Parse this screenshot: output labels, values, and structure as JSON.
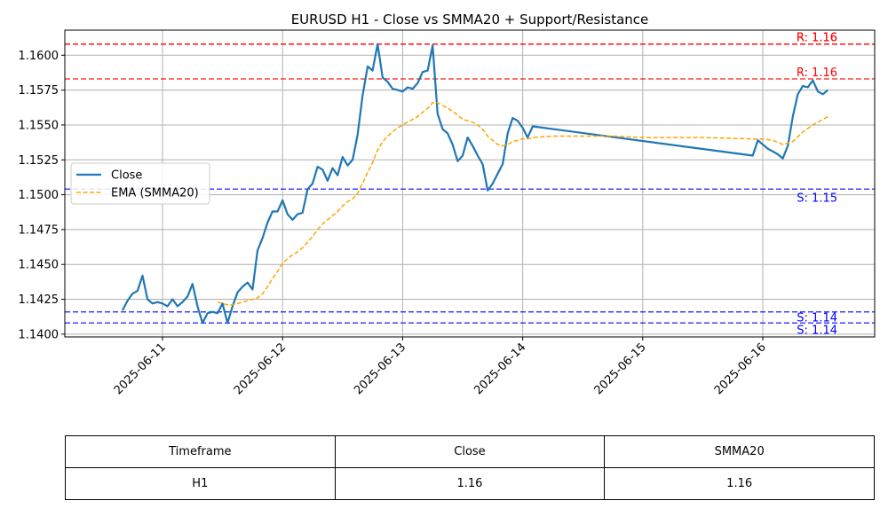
{
  "chart_data": {
    "type": "line",
    "title": "EURUSD H1 - Close vs SMMA20 + Support/Resistance",
    "xlabel": "",
    "ylabel": "",
    "x_ticks": [
      "2025-06-11",
      "2025-06-12",
      "2025-06-13",
      "2025-06-14",
      "2025-06-15",
      "2025-06-16"
    ],
    "y_ticks": [
      "1.1400",
      "1.1425",
      "1.1450",
      "1.1475",
      "1.1500",
      "1.1525",
      "1.1550",
      "1.1575",
      "1.1600"
    ],
    "ylim": [
      1.1398,
      1.1618
    ],
    "grid": true,
    "legend_position": "center-left",
    "series": [
      {
        "name": "Close",
        "color": "#1f77b4",
        "style": "solid",
        "points": [
          [
            "2025-06-10 16:00",
            1.1417
          ],
          [
            "2025-06-10 17:00",
            1.1424
          ],
          [
            "2025-06-10 18:00",
            1.1429
          ],
          [
            "2025-06-10 19:00",
            1.1431
          ],
          [
            "2025-06-10 20:00",
            1.1442
          ],
          [
            "2025-06-10 21:00",
            1.1425
          ],
          [
            "2025-06-10 22:00",
            1.1422
          ],
          [
            "2025-06-10 23:00",
            1.1423
          ],
          [
            "2025-06-11 00:00",
            1.1422
          ],
          [
            "2025-06-11 01:00",
            1.142
          ],
          [
            "2025-06-11 02:00",
            1.1425
          ],
          [
            "2025-06-11 03:00",
            1.142
          ],
          [
            "2025-06-11 04:00",
            1.1423
          ],
          [
            "2025-06-11 05:00",
            1.1427
          ],
          [
            "2025-06-11 06:00",
            1.1436
          ],
          [
            "2025-06-11 07:00",
            1.142
          ],
          [
            "2025-06-11 08:00",
            1.1408
          ],
          [
            "2025-06-11 09:00",
            1.1415
          ],
          [
            "2025-06-11 10:00",
            1.1416
          ],
          [
            "2025-06-11 11:00",
            1.1415
          ],
          [
            "2025-06-11 12:00",
            1.1422
          ],
          [
            "2025-06-11 13:00",
            1.1408
          ],
          [
            "2025-06-11 14:00",
            1.142
          ],
          [
            "2025-06-11 15:00",
            1.143
          ],
          [
            "2025-06-11 16:00",
            1.1434
          ],
          [
            "2025-06-11 17:00",
            1.1437
          ],
          [
            "2025-06-11 18:00",
            1.1432
          ],
          [
            "2025-06-11 19:00",
            1.146
          ],
          [
            "2025-06-11 20:00",
            1.1469
          ],
          [
            "2025-06-11 21:00",
            1.148
          ],
          [
            "2025-06-11 22:00",
            1.1488
          ],
          [
            "2025-06-11 23:00",
            1.1488
          ],
          [
            "2025-06-12 00:00",
            1.1496
          ],
          [
            "2025-06-12 01:00",
            1.1486
          ],
          [
            "2025-06-12 02:00",
            1.1482
          ],
          [
            "2025-06-12 03:00",
            1.1486
          ],
          [
            "2025-06-12 04:00",
            1.1487
          ],
          [
            "2025-06-12 05:00",
            1.1504
          ],
          [
            "2025-06-12 06:00",
            1.1508
          ],
          [
            "2025-06-12 07:00",
            1.152
          ],
          [
            "2025-06-12 08:00",
            1.1518
          ],
          [
            "2025-06-12 09:00",
            1.151
          ],
          [
            "2025-06-12 10:00",
            1.1519
          ],
          [
            "2025-06-12 11:00",
            1.1514
          ],
          [
            "2025-06-12 12:00",
            1.1527
          ],
          [
            "2025-06-12 13:00",
            1.1521
          ],
          [
            "2025-06-12 14:00",
            1.1525
          ],
          [
            "2025-06-12 15:00",
            1.1543
          ],
          [
            "2025-06-12 16:00",
            1.1571
          ],
          [
            "2025-06-12 17:00",
            1.1592
          ],
          [
            "2025-06-12 18:00",
            1.1589
          ],
          [
            "2025-06-12 19:00",
            1.1608
          ],
          [
            "2025-06-12 20:00",
            1.1584
          ],
          [
            "2025-06-12 21:00",
            1.1581
          ],
          [
            "2025-06-12 22:00",
            1.1576
          ],
          [
            "2025-06-12 23:00",
            1.1575
          ],
          [
            "2025-06-13 00:00",
            1.1574
          ],
          [
            "2025-06-13 01:00",
            1.1577
          ],
          [
            "2025-06-13 02:00",
            1.1576
          ],
          [
            "2025-06-13 03:00",
            1.158
          ],
          [
            "2025-06-13 04:00",
            1.1588
          ],
          [
            "2025-06-13 05:00",
            1.1589
          ],
          [
            "2025-06-13 06:00",
            1.1607
          ],
          [
            "2025-06-13 07:00",
            1.1558
          ],
          [
            "2025-06-13 08:00",
            1.1547
          ],
          [
            "2025-06-13 09:00",
            1.1544
          ],
          [
            "2025-06-13 10:00",
            1.1536
          ],
          [
            "2025-06-13 11:00",
            1.1524
          ],
          [
            "2025-06-13 12:00",
            1.1528
          ],
          [
            "2025-06-13 13:00",
            1.1541
          ],
          [
            "2025-06-13 14:00",
            1.1535
          ],
          [
            "2025-06-13 15:00",
            1.1528
          ],
          [
            "2025-06-13 16:00",
            1.1522
          ],
          [
            "2025-06-13 17:00",
            1.1503
          ],
          [
            "2025-06-13 18:00",
            1.1508
          ],
          [
            "2025-06-13 19:00",
            1.1515
          ],
          [
            "2025-06-13 20:00",
            1.1522
          ],
          [
            "2025-06-13 21:00",
            1.1544
          ],
          [
            "2025-06-13 22:00",
            1.1555
          ],
          [
            "2025-06-13 23:00",
            1.1553
          ],
          [
            "2025-06-14 00:00",
            1.1548
          ],
          [
            "2025-06-14 01:00",
            1.1541
          ],
          [
            "2025-06-14 02:00",
            1.1549
          ],
          [
            "2025-06-15 22:00",
            1.1528
          ],
          [
            "2025-06-15 23:00",
            1.1539
          ],
          [
            "2025-06-16 00:00",
            1.1536
          ],
          [
            "2025-06-16 01:00",
            1.1533
          ],
          [
            "2025-06-16 02:00",
            1.1531
          ],
          [
            "2025-06-16 03:00",
            1.1529
          ],
          [
            "2025-06-16 04:00",
            1.1526
          ],
          [
            "2025-06-16 05:00",
            1.1535
          ],
          [
            "2025-06-16 06:00",
            1.1556
          ],
          [
            "2025-06-16 07:00",
            1.1572
          ],
          [
            "2025-06-16 08:00",
            1.1578
          ],
          [
            "2025-06-16 09:00",
            1.1577
          ],
          [
            "2025-06-16 10:00",
            1.1582
          ],
          [
            "2025-06-16 11:00",
            1.1574
          ],
          [
            "2025-06-16 12:00",
            1.1572
          ],
          [
            "2025-06-16 13:00",
            1.1575
          ]
        ]
      },
      {
        "name": "EMA (SMMA20)",
        "color": "#ffa500",
        "style": "dashed",
        "points": [
          [
            "2025-06-11 11:00",
            1.1423
          ],
          [
            "2025-06-11 12:00",
            1.1422
          ],
          [
            "2025-06-11 13:00",
            1.1421
          ],
          [
            "2025-06-11 14:00",
            1.1421
          ],
          [
            "2025-06-11 15:00",
            1.1422
          ],
          [
            "2025-06-11 16:00",
            1.1423
          ],
          [
            "2025-06-11 17:00",
            1.1424
          ],
          [
            "2025-06-11 18:00",
            1.1425
          ],
          [
            "2025-06-11 19:00",
            1.1426
          ],
          [
            "2025-06-11 20:00",
            1.1429
          ],
          [
            "2025-06-11 21:00",
            1.1434
          ],
          [
            "2025-06-11 22:00",
            1.144
          ],
          [
            "2025-06-11 23:00",
            1.1445
          ],
          [
            "2025-06-12 00:00",
            1.1451
          ],
          [
            "2025-06-12 01:00",
            1.1454
          ],
          [
            "2025-06-12 02:00",
            1.1457
          ],
          [
            "2025-06-12 03:00",
            1.1459
          ],
          [
            "2025-06-12 04:00",
            1.1462
          ],
          [
            "2025-06-12 05:00",
            1.1466
          ],
          [
            "2025-06-12 06:00",
            1.147
          ],
          [
            "2025-06-12 07:00",
            1.1475
          ],
          [
            "2025-06-12 08:00",
            1.1479
          ],
          [
            "2025-06-12 09:00",
            1.1482
          ],
          [
            "2025-06-12 10:00",
            1.1485
          ],
          [
            "2025-06-12 11:00",
            1.1488
          ],
          [
            "2025-06-12 12:00",
            1.1492
          ],
          [
            "2025-06-12 13:00",
            1.1495
          ],
          [
            "2025-06-12 14:00",
            1.1497
          ],
          [
            "2025-06-12 15:00",
            1.1501
          ],
          [
            "2025-06-12 16:00",
            1.1508
          ],
          [
            "2025-06-12 17:00",
            1.1516
          ],
          [
            "2025-06-12 18:00",
            1.1523
          ],
          [
            "2025-06-12 19:00",
            1.1532
          ],
          [
            "2025-06-12 20:00",
            1.1538
          ],
          [
            "2025-06-12 21:00",
            1.1542
          ],
          [
            "2025-06-12 22:00",
            1.1545
          ],
          [
            "2025-06-12 23:00",
            1.1548
          ],
          [
            "2025-06-13 00:00",
            1.155
          ],
          [
            "2025-06-13 01:00",
            1.1552
          ],
          [
            "2025-06-13 02:00",
            1.1554
          ],
          [
            "2025-06-13 03:00",
            1.1556
          ],
          [
            "2025-06-13 04:00",
            1.1559
          ],
          [
            "2025-06-13 05:00",
            1.1562
          ],
          [
            "2025-06-13 06:00",
            1.1566
          ],
          [
            "2025-06-13 07:00",
            1.1566
          ],
          [
            "2025-06-13 08:00",
            1.1564
          ],
          [
            "2025-06-13 09:00",
            1.1562
          ],
          [
            "2025-06-13 10:00",
            1.156
          ],
          [
            "2025-06-13 11:00",
            1.1557
          ],
          [
            "2025-06-13 12:00",
            1.1554
          ],
          [
            "2025-06-13 13:00",
            1.1553
          ],
          [
            "2025-06-13 14:00",
            1.1552
          ],
          [
            "2025-06-13 15:00",
            1.155
          ],
          [
            "2025-06-13 16:00",
            1.1547
          ],
          [
            "2025-06-13 17:00",
            1.1542
          ],
          [
            "2025-06-13 18:00",
            1.1539
          ],
          [
            "2025-06-13 19:00",
            1.1536
          ],
          [
            "2025-06-13 20:00",
            1.1535
          ],
          [
            "2025-06-13 21:00",
            1.1536
          ],
          [
            "2025-06-13 22:00",
            1.1538
          ],
          [
            "2025-06-13 23:00",
            1.1539
          ],
          [
            "2025-06-14 00:00",
            1.154
          ],
          [
            "2025-06-14 01:00",
            1.154
          ],
          [
            "2025-06-14 02:00",
            1.1541
          ],
          [
            "2025-06-14 06:00",
            1.1542
          ],
          [
            "2025-06-14 12:00",
            1.1542
          ],
          [
            "2025-06-14 18:00",
            1.1542
          ],
          [
            "2025-06-15 00:00",
            1.1541
          ],
          [
            "2025-06-15 12:00",
            1.1541
          ],
          [
            "2025-06-15 22:00",
            1.154
          ],
          [
            "2025-06-16 00:00",
            1.154
          ],
          [
            "2025-06-16 02:00",
            1.1539
          ],
          [
            "2025-06-16 04:00",
            1.1536
          ],
          [
            "2025-06-16 06:00",
            1.1538
          ],
          [
            "2025-06-16 08:00",
            1.1545
          ],
          [
            "2025-06-16 10:00",
            1.155
          ],
          [
            "2025-06-16 12:00",
            1.1554
          ],
          [
            "2025-06-16 13:00",
            1.1556
          ]
        ]
      }
    ],
    "hlines": [
      {
        "kind": "resistance",
        "value": 1.1608,
        "label": "R: 1.16",
        "color": "#ff0000"
      },
      {
        "kind": "resistance",
        "value": 1.1608,
        "label": "R: 1.16",
        "color": "#ff0000"
      },
      {
        "kind": "resistance",
        "value": 1.1583,
        "label": "R: 1.16",
        "color": "#ff0000"
      },
      {
        "kind": "support",
        "value": 1.1504,
        "label": "S: 1.15",
        "color": "#0000ff"
      },
      {
        "kind": "support",
        "value": 1.1416,
        "label": "S: 1.14",
        "color": "#0000ff"
      },
      {
        "kind": "support",
        "value": 1.1408,
        "label": "S: 1.14",
        "color": "#0000ff"
      }
    ]
  },
  "table": {
    "headers": [
      "Timeframe",
      "Close",
      "SMMA20"
    ],
    "rows": [
      [
        "H1",
        "1.16",
        "1.16"
      ]
    ]
  }
}
